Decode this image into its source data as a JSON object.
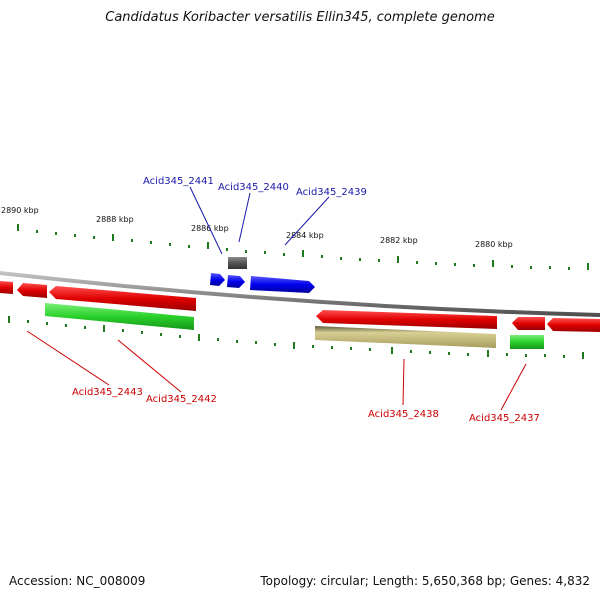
{
  "title": "Candidatus Koribacter versatilis Ellin345, complete genome",
  "footer": {
    "accession": "Accession: NC_008009",
    "summary": "Topology: circular; Length: 5,650,368 bp; Genes: 4,832"
  },
  "colors": {
    "forward_gene": "#e00000",
    "forward_label": "#cc0000",
    "other_gene": "#0000ee",
    "other_label": "#1a1aaa",
    "green_gene": "#2ad12a",
    "tan_gene": "#bfb476",
    "gray_gene": "#555555",
    "tick": "#1f7a1f"
  },
  "scale": {
    "labels": [
      "2890 kbp",
      "2888 kbp",
      "2886 kbp",
      "2884 kbp",
      "2882 kbp",
      "2880 kbp"
    ]
  },
  "genes": {
    "acid2441": "Acid345_2441",
    "acid2440": "Acid345_2440",
    "acid2439": "Acid345_2439",
    "acid2443": "Acid345_2443",
    "acid2442": "Acid345_2442",
    "acid2438": "Acid345_2438",
    "acid2437": "Acid345_2437"
  }
}
